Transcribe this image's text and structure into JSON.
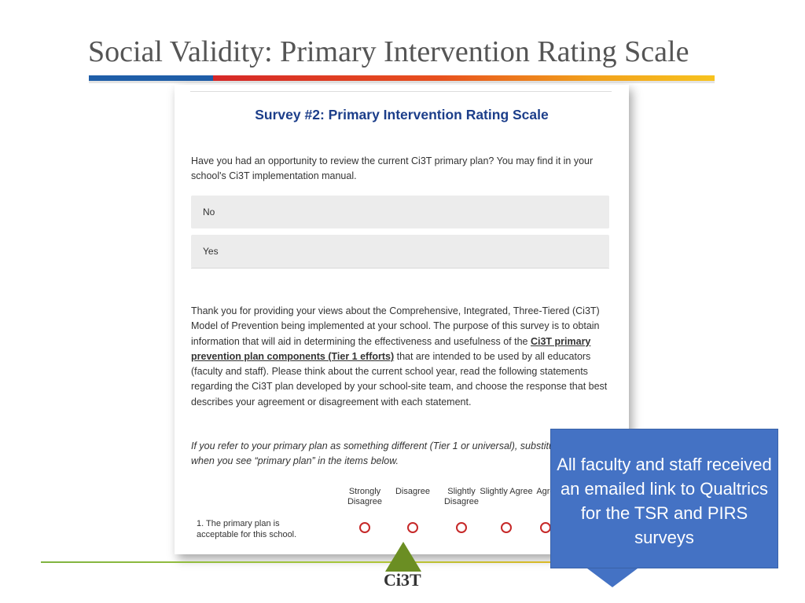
{
  "slide": {
    "title": "Social Validity: Primary Intervention Rating Scale"
  },
  "survey": {
    "title": "Survey #2: Primary Intervention Rating Scale",
    "question": "Have you had an opportunity to review the current Ci3T primary plan?  You may find it in your school's Ci3T implementation manual.",
    "options": [
      "No",
      "Yes"
    ],
    "intro_part1": "Thank you for providing your views about the Comprehensive, Integrated, Three-Tiered (Ci3T) Model of Prevention being implemented at your school. The purpose of this survey is to obtain information that will aid in determining the effectiveness and usefulness of the ",
    "intro_link": "Ci3T primary prevention plan components (Tier 1 efforts)",
    "intro_part2": " that are intended to be used by all educators (faculty and staff). Please think about the current school year, read the following statements regarding the Ci3T plan developed by your school-site team, and choose the response that best describes your agreement or disagreement with each statement.",
    "note": "If you refer to your primary plan as something different (Tier 1 or universal), substitute that term when you see “primary plan” in the items below.",
    "columns": [
      "Strongly Disagree",
      "Disagree",
      "Slightly Disagree",
      "Slightly Agree",
      "Agree"
    ],
    "item1": "1. The primary plan is acceptable for this school."
  },
  "callout": {
    "text": "All faculty and staff received an emailed link to Qualtrics for the TSR and PIRS surveys"
  },
  "logo": {
    "text": "Ci3T"
  },
  "colors": {
    "accent_blue": "#1f5ea8",
    "accent_red": "#d62828",
    "survey_title": "#1c3e8a",
    "callout_bg": "#4472c4",
    "radio_border": "#c62828"
  }
}
